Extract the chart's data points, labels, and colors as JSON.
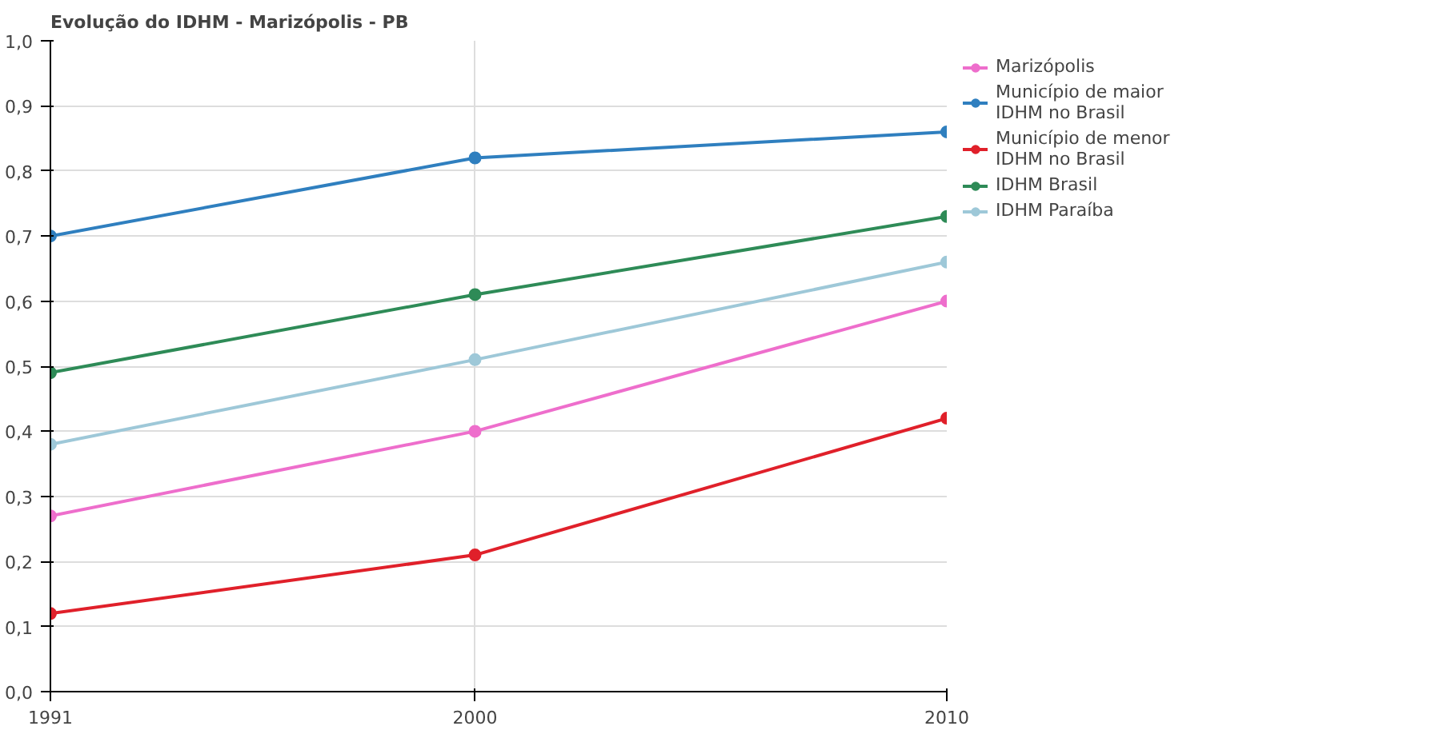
{
  "chart_data": {
    "type": "line",
    "title": "Evolução do IDHM - Marizópolis - PB",
    "x": [
      1991,
      2000,
      2010
    ],
    "xlim": [
      1991,
      2010
    ],
    "xticks": [
      1991,
      2000,
      2010
    ],
    "ylim": [
      0,
      1
    ],
    "yticks": [
      {
        "value": 0,
        "label": "0,0"
      },
      {
        "value": 0.1,
        "label": "0,1"
      },
      {
        "value": 0.2,
        "label": "0,2"
      },
      {
        "value": 0.3,
        "label": "0,3"
      },
      {
        "value": 0.4,
        "label": "0,4"
      },
      {
        "value": 0.5,
        "label": "0,5"
      },
      {
        "value": 0.6,
        "label": "0,6"
      },
      {
        "value": 0.7,
        "label": "0,7"
      },
      {
        "value": 0.8,
        "label": "0,8"
      },
      {
        "value": 0.9,
        "label": "0,9"
      },
      {
        "value": 1,
        "label": "1,0"
      }
    ],
    "grid": true,
    "legend": "right",
    "marker": "circle",
    "line_style": "solid",
    "series": [
      {
        "name": "Marizópolis",
        "color": "#ee6ecc",
        "values": [
          0.27,
          0.4,
          0.6
        ]
      },
      {
        "name": "Município de maior IDHM no Brasil",
        "color": "#2f7fbf",
        "values": [
          0.7,
          0.82,
          0.86
        ]
      },
      {
        "name": "Município de menor IDHM no Brasil",
        "color": "#e0202a",
        "values": [
          0.12,
          0.21,
          0.42
        ]
      },
      {
        "name": "IDHM Brasil",
        "color": "#2e8b57",
        "values": [
          0.49,
          0.61,
          0.73
        ]
      },
      {
        "name": "IDHM Paraíba",
        "color": "#9ec8d8",
        "values": [
          0.38,
          0.51,
          0.66
        ]
      }
    ]
  }
}
